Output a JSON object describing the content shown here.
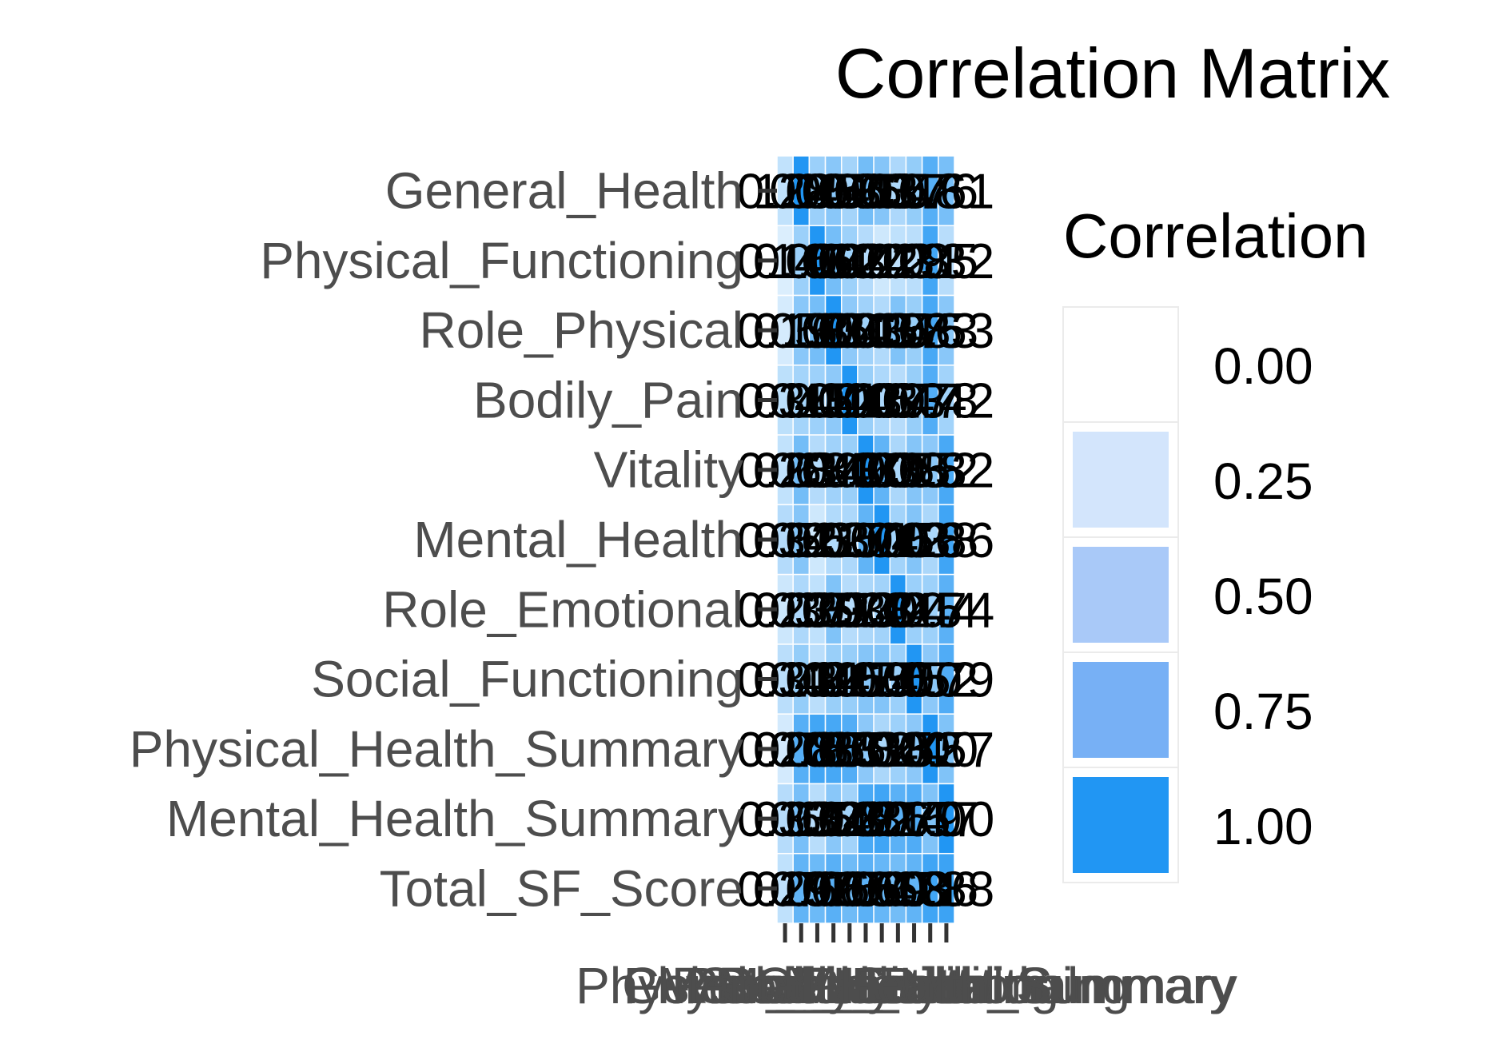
{
  "chart_data": {
    "type": "heatmap",
    "title": "Correlation Matrix",
    "xlabel": "",
    "ylabel": "",
    "row_labels": [
      "General_Health",
      "Physical_Functioning",
      "Role_Physical",
      "Bodily_Pain",
      "Vitality",
      "Mental_Health",
      "Role_Emotional",
      "Social_Functioning",
      "Physical_Health_Summary",
      "Mental_Health_Summary",
      "Total_SF_Score"
    ],
    "column_labels": [
      "PROMIS",
      "General_Health",
      "Physical_Functioning",
      "Role_Physical",
      "Bodily_Pain",
      "Vitality",
      "Mental_Health",
      "Role_Emotional",
      "Social_Functioning",
      "Physical_Health_Summary",
      "Mental_Health_Summary"
    ],
    "values": [
      [
        0.28,
        1.0,
        0.45,
        0.53,
        0.41,
        0.63,
        0.55,
        0.37,
        0.48,
        0.76,
        0.61
      ],
      [
        0.16,
        0.45,
        1.0,
        0.62,
        0.44,
        0.34,
        0.22,
        0.29,
        0.31,
        0.85,
        0.32
      ],
      [
        0.19,
        0.53,
        0.62,
        1.0,
        0.51,
        0.43,
        0.35,
        0.57,
        0.46,
        0.83,
        0.53
      ],
      [
        0.3,
        0.41,
        0.44,
        0.51,
        1.0,
        0.46,
        0.37,
        0.33,
        0.47,
        0.78,
        0.42
      ],
      [
        0.28,
        0.63,
        0.34,
        0.43,
        0.46,
        1.0,
        0.71,
        0.38,
        0.55,
        0.52,
        0.82
      ],
      [
        0.34,
        0.55,
        0.22,
        0.35,
        0.37,
        0.71,
        1.0,
        0.42,
        0.56,
        0.38,
        0.86
      ],
      [
        0.23,
        0.37,
        0.29,
        0.57,
        0.33,
        0.38,
        0.42,
        1.0,
        0.45,
        0.44,
        0.74
      ],
      [
        0.31,
        0.48,
        0.31,
        0.46,
        0.47,
        0.55,
        0.56,
        0.45,
        1.0,
        0.52,
        0.79
      ],
      [
        0.2,
        0.76,
        0.85,
        0.83,
        0.78,
        0.52,
        0.38,
        0.44,
        0.52,
        1.0,
        0.57
      ],
      [
        0.33,
        0.61,
        0.32,
        0.53,
        0.42,
        0.82,
        0.86,
        0.74,
        0.79,
        0.57,
        1.0
      ],
      [
        0.29,
        0.71,
        0.66,
        0.75,
        0.65,
        0.74,
        0.69,
        0.63,
        0.71,
        0.86,
        0.88
      ]
    ],
    "value_format": "2 decimals",
    "color_scale": {
      "low": "#ffffff",
      "high": "#2196f3",
      "min": 0,
      "max": 1
    },
    "legend": {
      "title": "Correlation",
      "breaks": [
        "0.00",
        "0.25",
        "0.50",
        "0.75",
        "1.00"
      ],
      "colors": [
        "#ffffff",
        "#d3e5fc",
        "#a9c9f8",
        "#77b0f5",
        "#2196f3"
      ],
      "position": "right"
    },
    "grid": false
  }
}
